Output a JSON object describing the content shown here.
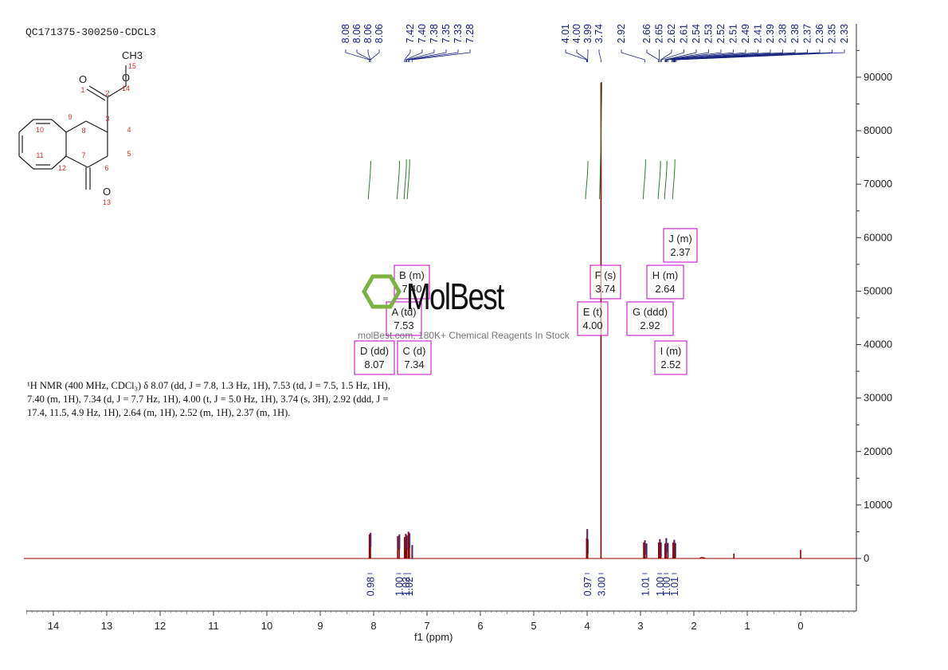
{
  "sample_id": "QC171375-300250-CDCL3",
  "nmr_description": "¹H NMR (400 MHz, CDCl₃) δ 8.07 (dd, J = 7.8, 1.3 Hz, 1H), 7.53 (td, J = 7.5, 1.5 Hz, 1H), 7.40 (m, 1H), 7.34 (d, J = 7.7 Hz, 1H), 4.00 (t, J = 5.0 Hz, 1H), 3.74 (s, 3H), 2.92 (ddd, J = 17.4, 11.5, 4.9 Hz, 1H), 2.64 (m, 1H), 2.52 (m, 1H), 2.37 (m, 1H).",
  "watermark": {
    "logo": "MolBest",
    "text": "molBest.com, 180K+ Chemical Reagents In Stock"
  },
  "colors": {
    "spectrum": "#8b0000",
    "peak_labels": "#1a237e",
    "integral": "#2e7d32",
    "multiplet_box": "#c000c0",
    "atom_numbers": "#d32f2f"
  },
  "molecule": {
    "atoms": [
      {
        "label": "O",
        "number": "1"
      },
      {
        "label": "",
        "number": "2"
      },
      {
        "label": "",
        "number": "3"
      },
      {
        "label": "",
        "number": "4"
      },
      {
        "label": "",
        "number": "5"
      },
      {
        "label": "",
        "number": "6"
      },
      {
        "label": "",
        "number": "7"
      },
      {
        "label": "",
        "number": "8"
      },
      {
        "label": "",
        "number": "9"
      },
      {
        "label": "",
        "number": "10"
      },
      {
        "label": "",
        "number": "11"
      },
      {
        "label": "",
        "number": "12"
      },
      {
        "label": "O",
        "number": "13"
      },
      {
        "label": "O",
        "number": "14"
      },
      {
        "label": "CH3",
        "number": "15"
      }
    ]
  },
  "chart_data": {
    "type": "line",
    "xlabel": "f1 (ppm)",
    "ylabel": "",
    "xlim": [
      14.5,
      -1.0
    ],
    "ylim": [
      -10000,
      95000
    ],
    "x_ticks": [
      14,
      13,
      12,
      11,
      10,
      9,
      8,
      7,
      6,
      5,
      4,
      3,
      2,
      1,
      0
    ],
    "y_ticks": [
      0,
      10000,
      20000,
      30000,
      40000,
      50000,
      60000,
      70000,
      80000,
      90000
    ],
    "peak_labels": [
      "8.08",
      "8.06",
      "8.06",
      "8.06",
      "7.42",
      "7.40",
      "7.38",
      "7.35",
      "7.33",
      "7.28",
      "4.01",
      "4.00",
      "3.99",
      "3.74",
      "2.92",
      "2.66",
      "2.65",
      "2.62",
      "2.61",
      "2.54",
      "2.53",
      "2.52",
      "2.51",
      "2.49",
      "2.41",
      "2.39",
      "2.38",
      "2.38",
      "2.37",
      "2.36",
      "2.35",
      "2.33"
    ],
    "peaks": [
      {
        "x": 8.08,
        "y": 4500
      },
      {
        "x": 8.06,
        "y": 4800
      },
      {
        "x": 7.55,
        "y": 4200
      },
      {
        "x": 7.52,
        "y": 4500
      },
      {
        "x": 7.42,
        "y": 4000
      },
      {
        "x": 7.4,
        "y": 4600
      },
      {
        "x": 7.38,
        "y": 4300
      },
      {
        "x": 7.35,
        "y": 5000
      },
      {
        "x": 7.33,
        "y": 4700
      },
      {
        "x": 7.28,
        "y": 2500
      },
      {
        "x": 4.01,
        "y": 3800
      },
      {
        "x": 4.0,
        "y": 5500
      },
      {
        "x": 3.99,
        "y": 3600
      },
      {
        "x": 3.74,
        "y": 89000
      },
      {
        "x": 2.94,
        "y": 3000
      },
      {
        "x": 2.92,
        "y": 3400
      },
      {
        "x": 2.89,
        "y": 2800
      },
      {
        "x": 2.66,
        "y": 3000
      },
      {
        "x": 2.64,
        "y": 3600
      },
      {
        "x": 2.62,
        "y": 3000
      },
      {
        "x": 2.54,
        "y": 2800
      },
      {
        "x": 2.52,
        "y": 3800
      },
      {
        "x": 2.49,
        "y": 2900
      },
      {
        "x": 2.39,
        "y": 3000
      },
      {
        "x": 2.37,
        "y": 3500
      },
      {
        "x": 2.35,
        "y": 2900
      },
      {
        "x": 1.25,
        "y": 900
      },
      {
        "x": 0.0,
        "y": 1600
      }
    ],
    "multiplets": [
      {
        "letter": "B",
        "type": "m",
        "value": "7.40"
      },
      {
        "letter": "A",
        "type": "td",
        "value": "7.53"
      },
      {
        "letter": "D",
        "type": "dd",
        "value": "8.07"
      },
      {
        "letter": "C",
        "type": "d",
        "value": "7.34"
      },
      {
        "letter": "F",
        "type": "s",
        "value": "3.74"
      },
      {
        "letter": "E",
        "type": "t",
        "value": "4.00"
      },
      {
        "letter": "J",
        "type": "m",
        "value": "2.37"
      },
      {
        "letter": "H",
        "type": "m",
        "value": "2.64"
      },
      {
        "letter": "G",
        "type": "ddd",
        "value": "2.92"
      },
      {
        "letter": "I",
        "type": "m",
        "value": "2.52"
      }
    ],
    "integrals": [
      {
        "x": 8.07,
        "value": "0.98"
      },
      {
        "x": 7.53,
        "value": "1.00"
      },
      {
        "x": 7.4,
        "value": "1.02"
      },
      {
        "x": 7.34,
        "value": "1.02"
      },
      {
        "x": 4.0,
        "value": "0.97"
      },
      {
        "x": 3.74,
        "value": "3.00"
      },
      {
        "x": 2.92,
        "value": "1.01"
      },
      {
        "x": 2.64,
        "value": "1.00"
      },
      {
        "x": 2.52,
        "value": "1.00"
      },
      {
        "x": 2.37,
        "value": "1.01"
      }
    ]
  }
}
